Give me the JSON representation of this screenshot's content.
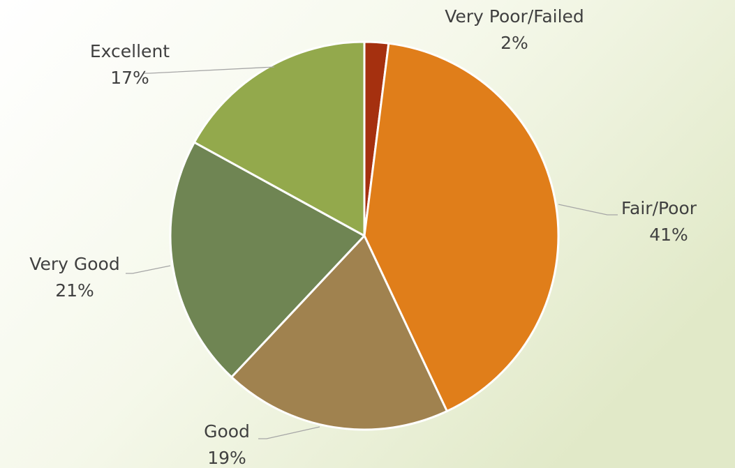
{
  "chart_data": {
    "type": "pie",
    "categories": [
      "Very Poor/Failed",
      "Fair/Poor",
      "Good",
      "Very Good",
      "Excellent"
    ],
    "values": [
      2,
      41,
      19,
      21,
      17
    ],
    "value_labels": [
      "2%",
      "41%",
      "19%",
      "21%",
      "17%"
    ],
    "colors": [
      "#a5300f",
      "#e07e1a",
      "#a0824f",
      "#6f8553",
      "#93a94c"
    ]
  }
}
